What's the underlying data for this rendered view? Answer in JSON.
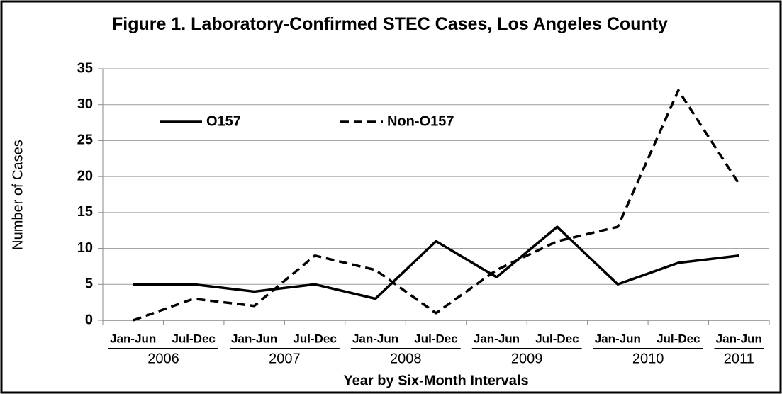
{
  "chart_data": {
    "type": "line",
    "title": "Figure 1. Laboratory-Confirmed STEC Cases, Los Angeles County",
    "categories": [
      "Jan-Jun",
      "Jul-Dec",
      "Jan-Jun",
      "Jul-Dec",
      "Jan-Jun",
      "Jul-Dec",
      "Jan-Jun",
      "Jul-Dec",
      "Jan-Jun",
      "Jul-Dec",
      "Jan-Jun"
    ],
    "years": [
      "2006",
      "2007",
      "2008",
      "2009",
      "2010",
      "2011"
    ],
    "series": [
      {
        "name": "O157",
        "color": "#000000",
        "dash": false,
        "values": [
          5,
          5,
          4,
          5,
          3,
          11,
          6,
          13,
          5,
          8,
          9
        ]
      },
      {
        "name": "Non-O157",
        "color": "#000000",
        "dash": true,
        "values": [
          0,
          3,
          2,
          9,
          7,
          1,
          7,
          11,
          13,
          32,
          19
        ]
      }
    ],
    "ylim": [
      0,
      35
    ],
    "yticks": [
      0,
      5,
      10,
      15,
      20,
      25,
      30,
      35
    ],
    "grid": true,
    "ylabel": "Number of Cases",
    "xlabel": "Year by Six-Month Intervals"
  }
}
